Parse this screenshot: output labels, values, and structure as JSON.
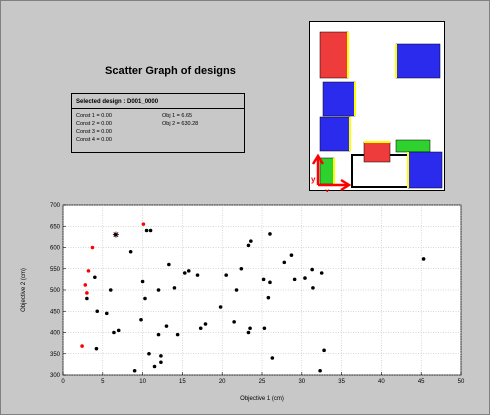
{
  "window": {
    "title": "Scatter Graph of designs"
  },
  "selected_design": {
    "header": "Selected design : D001_0000",
    "constraints": [
      "Const 1 = 0.00",
      "Const 2 = 0.00",
      "Const 3 = 0.00",
      "Const 4 = 0.00"
    ],
    "objectives": [
      "Obj 1 = 6.65",
      "Obj 2 = 630.28"
    ]
  },
  "layout_preview": {
    "axis_labels": {
      "y": "y",
      "x": "x"
    },
    "colors": {
      "red": "#ee3b3b",
      "blue": "#2b2bee",
      "green": "#2ed12e",
      "yellow": "#ffff00",
      "outline": "#000000",
      "axis": "#ff0000"
    }
  },
  "chart_data": {
    "type": "scatter",
    "xlabel": "Objective 1 (cm)",
    "ylabel": "Objective 2 (cm)",
    "xlim": [
      0,
      50
    ],
    "ylim": [
      300,
      700
    ],
    "x_ticks": [
      0,
      5,
      10,
      15,
      20,
      25,
      30,
      35,
      40,
      45,
      50
    ],
    "y_ticks": [
      300,
      350,
      400,
      450,
      500,
      550,
      600,
      650,
      700
    ],
    "grid": true,
    "series": [
      {
        "color": "#000000",
        "points": [
          [
            3.0,
            480
          ],
          [
            4.0,
            530
          ],
          [
            4.3,
            450
          ],
          [
            4.2,
            362
          ],
          [
            5.5,
            445
          ],
          [
            6.0,
            500
          ],
          [
            6.4,
            400
          ],
          [
            7.0,
            405
          ],
          [
            8.5,
            590
          ],
          [
            9.0,
            310
          ],
          [
            9.8,
            430
          ],
          [
            10.0,
            520
          ],
          [
            10.3,
            480
          ],
          [
            10.5,
            640
          ],
          [
            11.0,
            640
          ],
          [
            10.8,
            350
          ],
          [
            11.5,
            320
          ],
          [
            12.0,
            395
          ],
          [
            12.0,
            500
          ],
          [
            12.3,
            345
          ],
          [
            12.3,
            330
          ],
          [
            13.0,
            415
          ],
          [
            13.3,
            560
          ],
          [
            14.0,
            505
          ],
          [
            14.4,
            395
          ],
          [
            15.3,
            540
          ],
          [
            15.8,
            545
          ],
          [
            16.9,
            535
          ],
          [
            17.3,
            410
          ],
          [
            17.9,
            420
          ],
          [
            19.8,
            460
          ],
          [
            20.5,
            535
          ],
          [
            21.5,
            425
          ],
          [
            21.8,
            500
          ],
          [
            22.4,
            550
          ],
          [
            23.3,
            400
          ],
          [
            23.5,
            410
          ],
          [
            23.3,
            605
          ],
          [
            23.6,
            615
          ],
          [
            25.2,
            525
          ],
          [
            25.3,
            410
          ],
          [
            25.8,
            482
          ],
          [
            26.0,
            632
          ],
          [
            26.0,
            518
          ],
          [
            26.3,
            340
          ],
          [
            27.8,
            565
          ],
          [
            28.7,
            582
          ],
          [
            29.1,
            525
          ],
          [
            30.4,
            528
          ],
          [
            31.3,
            548
          ],
          [
            31.4,
            505
          ],
          [
            32.3,
            310
          ],
          [
            32.5,
            540
          ],
          [
            32.8,
            358
          ],
          [
            45.3,
            573
          ]
        ]
      },
      {
        "color": "#ff0000",
        "points": [
          [
            2.4,
            368
          ],
          [
            2.8,
            512
          ],
          [
            3.0,
            493
          ],
          [
            3.2,
            545
          ],
          [
            3.7,
            600
          ],
          [
            6.6,
            630
          ],
          [
            10.1,
            655
          ]
        ]
      }
    ],
    "selected_point": {
      "x": 6.65,
      "y": 630.28,
      "marker": "star"
    }
  }
}
